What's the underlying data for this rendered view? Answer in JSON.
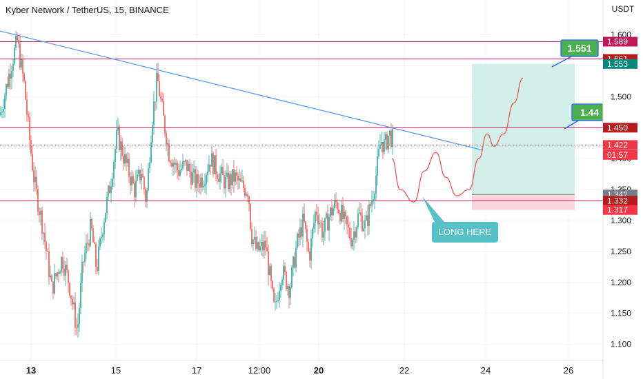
{
  "header": {
    "title": "Kyber Network / TetherUS, 15, BINANCE",
    "currency": "USDT"
  },
  "colors": {
    "up": "#26a69a",
    "down": "#ef5350",
    "hline": "#c2185b",
    "trend": "#5b9cf0",
    "path": "#ef5350",
    "profit": "#d3efe9",
    "loss": "#fbd6d8",
    "callout": "#56c1c7",
    "green_label": "#4caf50"
  },
  "annotations": {
    "callout_text": "LONG HERE",
    "target_label": "1.551",
    "mid_label": "1.44"
  },
  "chart_data": {
    "type": "candlestick",
    "y_axis": {
      "min": 1.08,
      "max": 1.62,
      "ticks": [
        "1.100",
        "1.150",
        "1.200",
        "1.250",
        "1.300",
        "1.350",
        "1.400",
        "1.450",
        "1.500",
        "1.550",
        "1.600"
      ]
    },
    "x_axis": {
      "ticks": [
        "13",
        "15",
        "17",
        "12:00",
        "20",
        "22",
        "24",
        "26"
      ]
    },
    "horizontal_levels": [
      1.589,
      1.561,
      1.45,
      1.332
    ],
    "price_tags": [
      {
        "text": "1.589",
        "value": 1.589,
        "bg": "#c2185b",
        "fg": "#ffffff"
      },
      {
        "text": "1.561",
        "value": 1.561,
        "bg": "#b71c1c",
        "fg": "#ffffff"
      },
      {
        "text": "1.553",
        "value": 1.553,
        "bg": "#00897b",
        "fg": "#ffffff"
      },
      {
        "text": "1.450",
        "value": 1.45,
        "bg": "#b71c1c",
        "fg": "#ffffff"
      },
      {
        "text": "1.422",
        "value": 1.422,
        "bg": "#f23645",
        "fg": "#ffffff"
      },
      {
        "text": "01:57",
        "value": 1.406,
        "bg": "#f23645",
        "fg": "#ffffff"
      },
      {
        "text": "1.342",
        "value": 1.342,
        "bg": "#787b86",
        "fg": "#ffffff"
      },
      {
        "text": "1.332",
        "value": 1.332,
        "bg": "#b71c1c",
        "fg": "#ffffff"
      },
      {
        "text": "1.317",
        "value": 1.317,
        "bg": "#f23645",
        "fg": "#ffffff"
      }
    ],
    "current_price": 1.422,
    "position": {
      "entry": 1.342,
      "target": 1.553,
      "stop": 1.317
    },
    "price_anchors": [
      [
        0,
        1.47
      ],
      [
        10,
        1.52
      ],
      [
        18,
        1.56
      ],
      [
        25,
        1.59
      ],
      [
        35,
        1.52
      ],
      [
        42,
        1.44
      ],
      [
        50,
        1.36
      ],
      [
        62,
        1.29
      ],
      [
        75,
        1.19
      ],
      [
        90,
        1.24
      ],
      [
        100,
        1.2
      ],
      [
        112,
        1.12
      ],
      [
        120,
        1.23
      ],
      [
        132,
        1.29
      ],
      [
        140,
        1.22
      ],
      [
        150,
        1.3
      ],
      [
        160,
        1.36
      ],
      [
        170,
        1.44
      ],
      [
        180,
        1.4
      ],
      [
        195,
        1.35
      ],
      [
        205,
        1.38
      ],
      [
        212,
        1.33
      ],
      [
        220,
        1.46
      ],
      [
        228,
        1.53
      ],
      [
        236,
        1.47
      ],
      [
        245,
        1.41
      ],
      [
        258,
        1.38
      ],
      [
        270,
        1.39
      ],
      [
        284,
        1.36
      ],
      [
        295,
        1.37
      ],
      [
        305,
        1.4
      ],
      [
        315,
        1.38
      ],
      [
        328,
        1.36
      ],
      [
        340,
        1.37
      ],
      [
        350,
        1.355
      ],
      [
        360,
        1.35
      ],
      [
        364,
        1.28
      ],
      [
        372,
        1.25
      ],
      [
        385,
        1.26
      ],
      [
        398,
        1.15
      ],
      [
        408,
        1.22
      ],
      [
        420,
        1.19
      ],
      [
        430,
        1.26
      ],
      [
        440,
        1.3
      ],
      [
        448,
        1.24
      ],
      [
        458,
        1.32
      ],
      [
        468,
        1.28
      ],
      [
        478,
        1.31
      ],
      [
        488,
        1.33
      ],
      [
        498,
        1.3
      ],
      [
        510,
        1.27
      ],
      [
        520,
        1.31
      ],
      [
        530,
        1.29
      ],
      [
        540,
        1.34
      ],
      [
        546,
        1.38
      ],
      [
        552,
        1.43
      ],
      [
        558,
        1.42
      ],
      [
        564,
        1.44
      ],
      [
        570,
        1.43
      ]
    ],
    "projection": [
      [
        568,
        1.4
      ],
      [
        580,
        1.35
      ],
      [
        600,
        1.33
      ],
      [
        615,
        1.38
      ],
      [
        632,
        1.41
      ],
      [
        646,
        1.37
      ],
      [
        662,
        1.34
      ],
      [
        680,
        1.35
      ],
      [
        694,
        1.4
      ],
      [
        706,
        1.44
      ],
      [
        716,
        1.42
      ],
      [
        730,
        1.44
      ],
      [
        745,
        1.49
      ],
      [
        758,
        1.53
      ]
    ]
  }
}
